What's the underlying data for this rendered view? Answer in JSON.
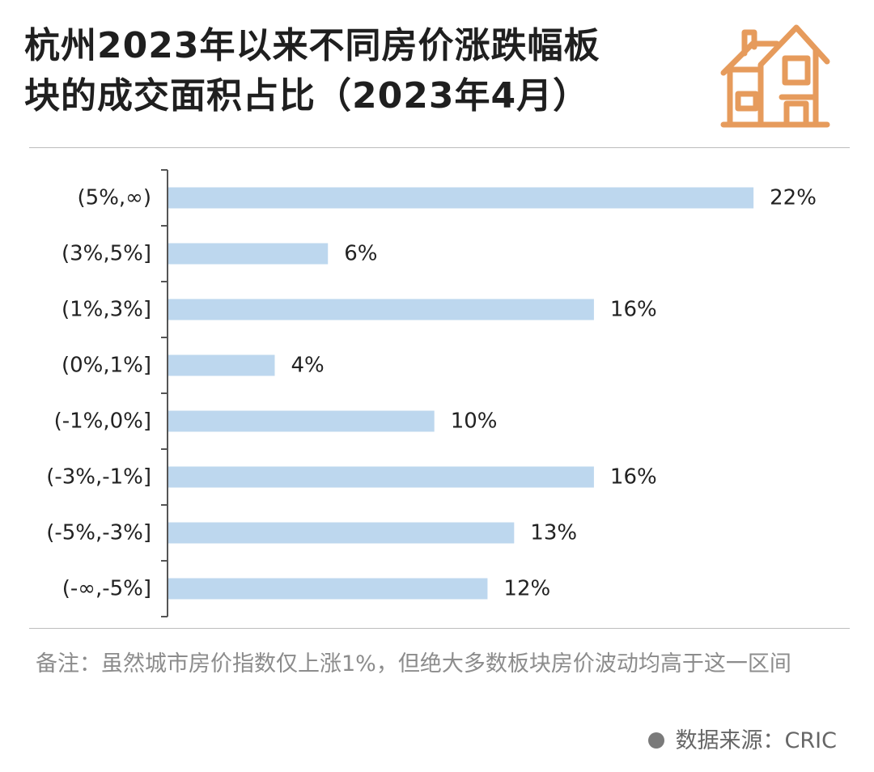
{
  "header": {
    "title_line1": "杭州2023年以来不同房价涨跌幅板",
    "title_line2": "块的成交面积占比（2023年4月）"
  },
  "icons": {
    "header_icon": "house-icon",
    "source_bullet": "bullet-dot-icon"
  },
  "colors": {
    "bar": "#bdd7ee",
    "axis": "#555555",
    "icon": "#e69b5c",
    "title": "#1f1f1f",
    "note": "#8c8c8c"
  },
  "chart_data": {
    "type": "bar",
    "orientation": "horizontal",
    "categories": [
      "(5%,∞)",
      "(3%,5%]",
      "(1%,3%]",
      "(0%,1%]",
      "(-1%,0%]",
      "(-3%,-1%]",
      "(-5%,-3%]",
      "(-∞,-5%]"
    ],
    "values": [
      22,
      6,
      16,
      4,
      10,
      16,
      13,
      12
    ],
    "value_labels": [
      "22%",
      "6%",
      "16%",
      "4%",
      "10%",
      "16%",
      "13%",
      "12%"
    ],
    "unit": "%",
    "xlim": [
      0,
      23
    ],
    "grid": false,
    "legend": "none"
  },
  "footer": {
    "note": "备注：虽然城市房价指数仅上涨1%，但绝大多数板块房价波动均高于这一区间",
    "source": "数据来源：CRIC"
  }
}
